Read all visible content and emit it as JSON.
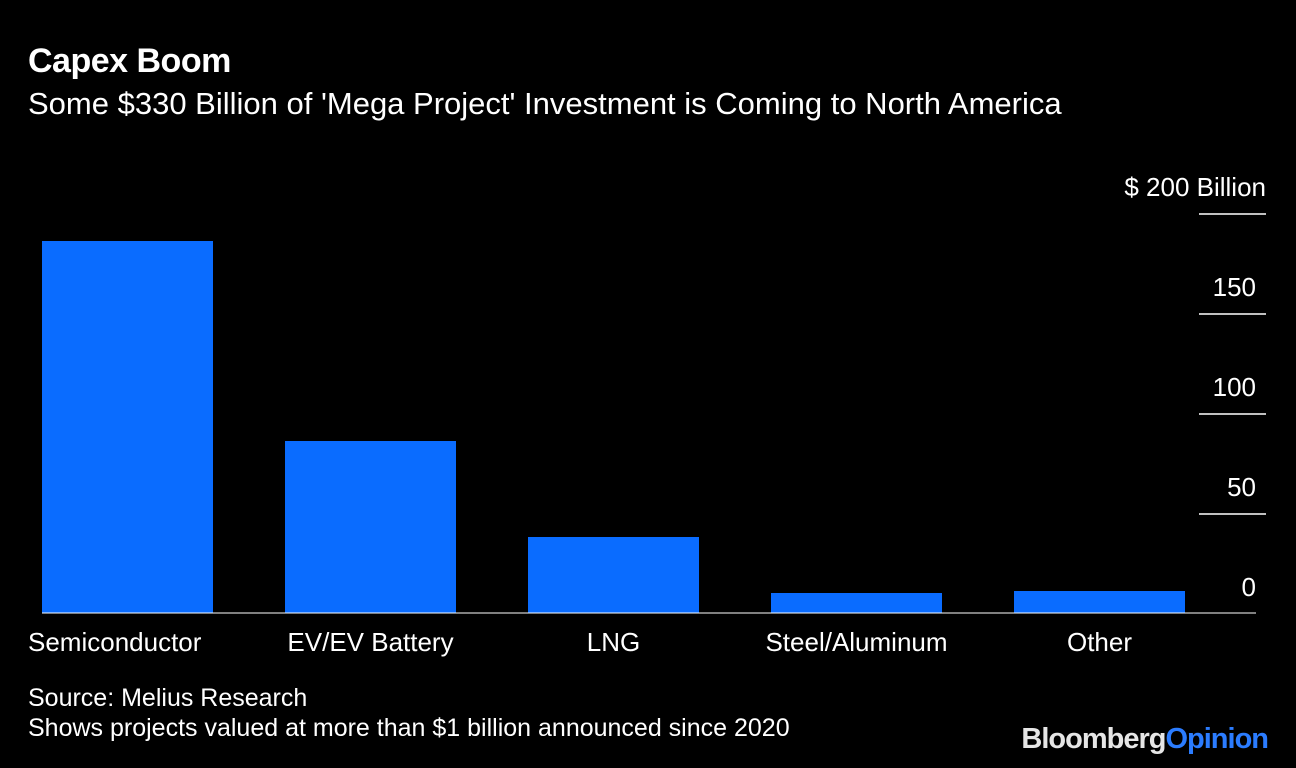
{
  "title": "Capex Boom",
  "subtitle": "Some $330 Billion of 'Mega Project' Investment is Coming to North America",
  "source": "Source: Melius Research",
  "note": "Shows projects valued at more than $1 billion announced since 2020",
  "brand": {
    "part1": "Bloomberg",
    "part2": "Opinion"
  },
  "colors": {
    "background": "#000000",
    "bar": "#0a6cff",
    "text": "#ffffff",
    "brand_accent": "#2b7cff"
  },
  "chart_data": {
    "type": "bar",
    "categories": [
      "Semiconductor",
      "EV/EV Battery",
      "LNG",
      "Steel/Aluminum",
      "Other"
    ],
    "values": [
      186,
      86,
      38,
      10,
      11
    ],
    "ylim": [
      0,
      200
    ],
    "yticks": [
      0,
      50,
      100,
      150,
      200
    ],
    "ytick_labels": [
      "0",
      "50",
      "100",
      "150",
      "$ 200 Billion"
    ],
    "y_axis_position": "right",
    "grid": false
  }
}
